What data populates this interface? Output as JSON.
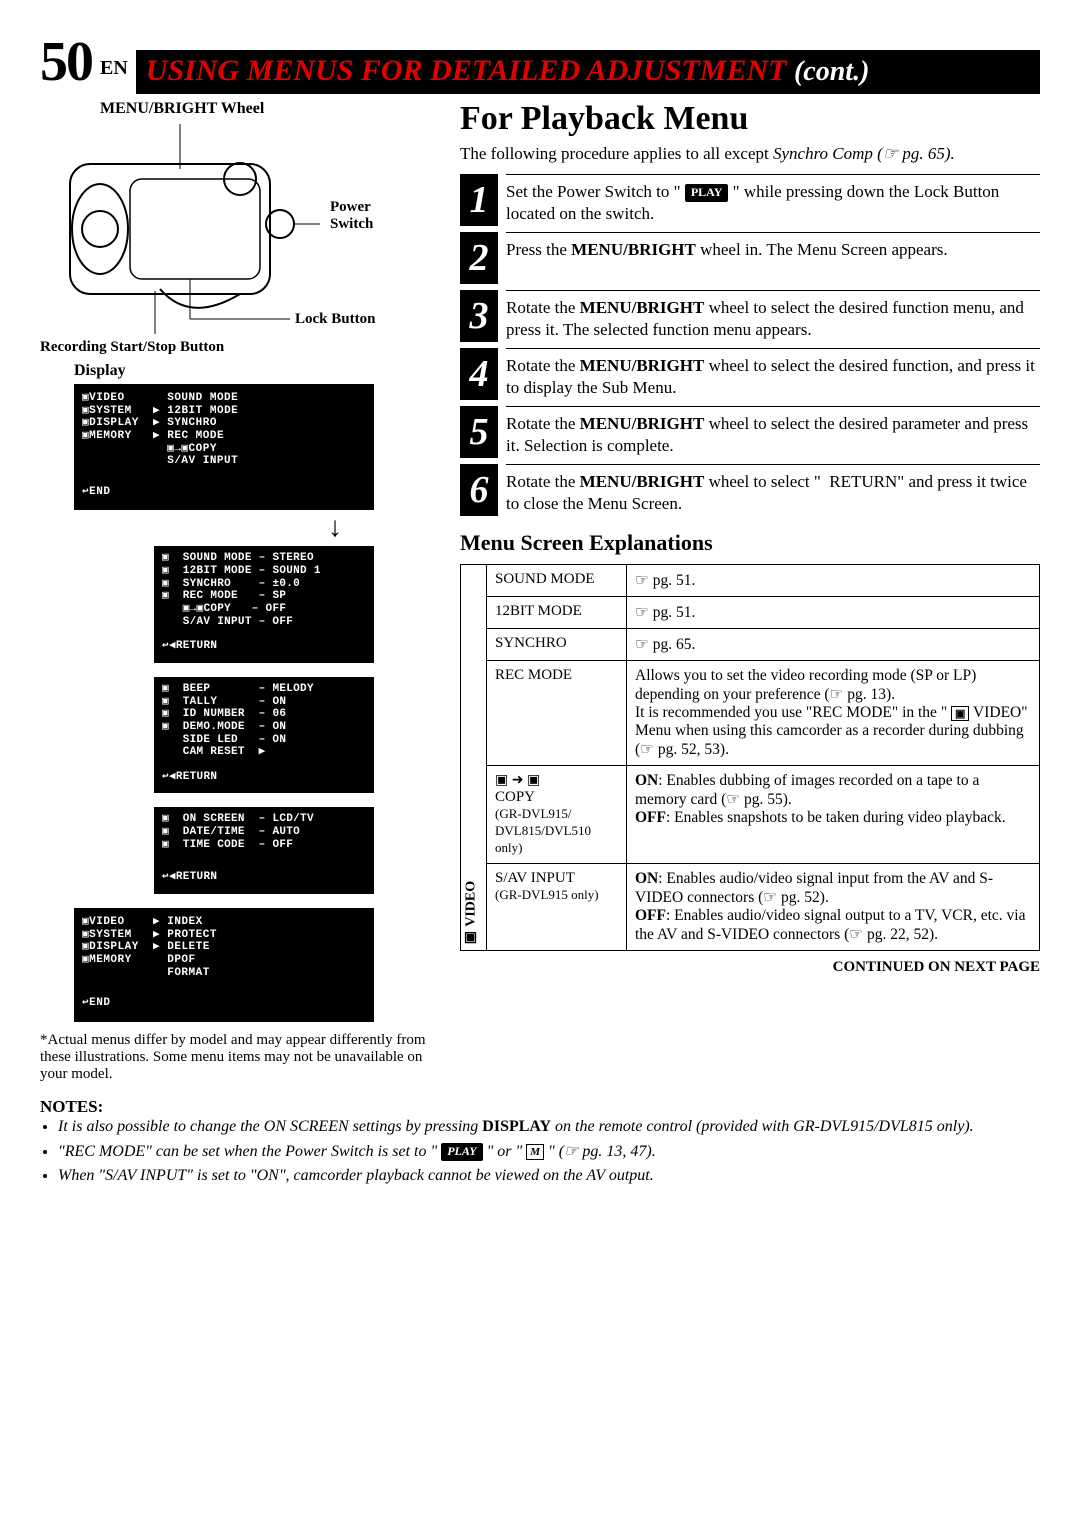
{
  "header": {
    "page_num": "50",
    "lang": "EN",
    "title_red": "USING MENUS FOR DETAILED ADJUSTMENT",
    "title_cont": "(cont.)"
  },
  "left": {
    "wheel_label": "MENU/BRIGHT Wheel",
    "power_switch": "Power Switch",
    "lock_button": "Lock Button",
    "rec_button": "Recording Start/Stop Button",
    "display_label": "Display",
    "menu1": {
      "rows": [
        "▣VIDEO      SOUND MODE",
        "▣SYSTEM   ▶ 12BIT MODE",
        "▣DISPLAY  ▶ SYNCHRO",
        "▣MEMORY   ▶ REC MODE",
        "            ▣→▣COPY",
        "            S/AV INPUT"
      ],
      "end": "↩END"
    },
    "menu2": {
      "rows": [
        "▣  SOUND MODE – STEREO",
        "▣  12BIT MODE – SOUND 1",
        "▣  SYNCHRO    – ±0.0",
        "▣  REC MODE   – SP",
        "   ▣→▣COPY   – OFF",
        "   S/AV INPUT – OFF"
      ],
      "return": "↩◀RETURN"
    },
    "menu3": {
      "rows": [
        "▣  BEEP       – MELODY",
        "▣  TALLY      – ON",
        "▣  ID NUMBER  – 06",
        "▣  DEMO.MODE  – ON",
        "   SIDE LED   – ON",
        "   CAM RESET  ▶"
      ],
      "return": "↩◀RETURN"
    },
    "menu4": {
      "rows": [
        "▣  ON SCREEN  – LCD/TV",
        "▣  DATE/TIME  – AUTO",
        "▣  TIME CODE  – OFF"
      ],
      "return": "↩◀RETURN"
    },
    "menu5": {
      "rows": [
        "▣VIDEO    ▶ INDEX",
        "▣SYSTEM   ▶ PROTECT",
        "▣DISPLAY  ▶ DELETE",
        "▣MEMORY     DPOF",
        "            FORMAT"
      ],
      "end": "↩END"
    },
    "footnote": "*Actual menus differ by model and may appear differently from these illustrations. Some menu items may not be unavailable on your model."
  },
  "right": {
    "title": "For Playback Menu",
    "intro_a": "The following procedure applies to all except ",
    "intro_b": "Synchro Comp (☞ pg. 65).",
    "steps": [
      {
        "n": "1",
        "html": "Set the Power Switch to \" <span class='play-badge'>PLAY</span> \" while pressing down the Lock Button located on the switch."
      },
      {
        "n": "2",
        "html": "Press the <b>MENU/BRIGHT</b> wheel in. The Menu Screen appears."
      },
      {
        "n": "3",
        "html": "Rotate the <b>MENU/BRIGHT</b> wheel to select the desired function menu, and press it. The selected function menu appears."
      },
      {
        "n": "4",
        "html": "Rotate the <b>MENU/BRIGHT</b> wheel to select the desired function, and press it to display the Sub Menu."
      },
      {
        "n": "5",
        "html": "Rotate the <b>MENU/BRIGHT</b> wheel to select the desired parameter and press it. Selection is complete."
      },
      {
        "n": "6",
        "html": "Rotate the <b>MENU/BRIGHT</b> wheel to select \"&nbsp;&nbsp;RETURN\" and press it twice to close the Menu Screen."
      }
    ],
    "subhead": "Menu Screen Explanations",
    "video_cat": "▣ VIDEO",
    "table": [
      {
        "item": "SOUND MODE",
        "desc": "☞ pg. 51."
      },
      {
        "item": "12BIT MODE",
        "desc": "☞ pg. 51."
      },
      {
        "item": "SYNCHRO",
        "desc": "☞ pg. 65."
      },
      {
        "item": "REC MODE",
        "desc": "Allows you to set the video recording mode (SP or LP) depending on your preference (☞ pg. 13).<br>It is recommended you use \"REC MODE\" in the \" <span class='cam-icon'>▣</span> VIDEO\" Menu when using this camcorder as a recorder during dubbing (☞ pg. 52, 53)."
      },
      {
        "item": "<span style='font-size:14px'>▣ ➜ ▣</span><br>COPY<br><span class='subnote'>(GR-DVL915/ DVL815/DVL510 only)</span>",
        "desc": "<b>ON</b>: Enables dubbing of images recorded on a tape to a memory card (☞ pg. 55).<br><b>OFF</b>: Enables snapshots to be taken during video playback."
      },
      {
        "item": "S/AV INPUT<br><span class='subnote'>(GR-DVL915 only)</span>",
        "desc": "<b>ON</b>: Enables audio/video signal input from the AV and S-VIDEO connectors (☞ pg. 52).<br><b>OFF</b>: Enables audio/video signal output to a TV, VCR, etc. via the AV and S-VIDEO connectors (☞ pg. 22, 52)."
      }
    ],
    "continued": "CONTINUED ON NEXT PAGE"
  },
  "notes": {
    "head": "NOTES:",
    "items": [
      "It is also possible to change the ON SCREEN settings by pressing <span class='b'>DISPLAY</span> on the remote control (provided with GR-DVL915/DVL815 only).",
      "\"REC MODE\" can be set when the Power Switch is set to \" <span class='play-badge'>PLAY</span> \" or \" <span class='cam-icon'>M</span> \" (☞ pg. 13, 47).",
      "When \"S/AV INPUT\" is set to \"ON\", camcorder playback cannot be viewed on the AV output."
    ]
  }
}
